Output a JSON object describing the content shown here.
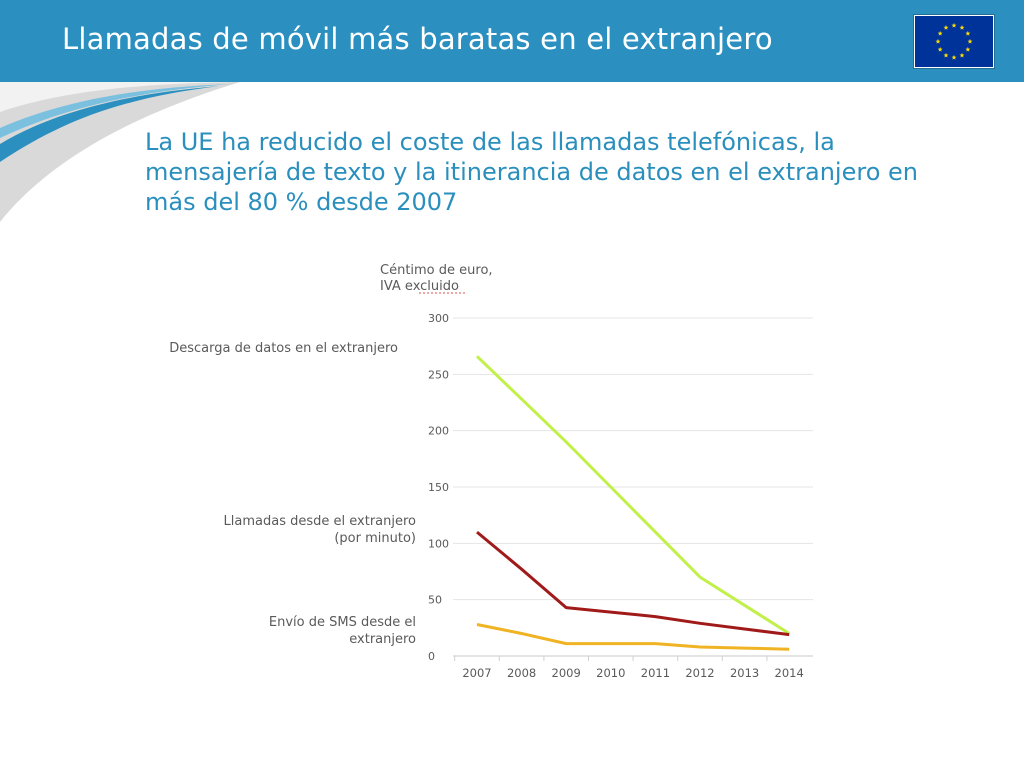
{
  "slide": {
    "title": "Llamadas de móvil más baratas en el extranjero",
    "subtitle": "La UE ha reducido el coste de las llamadas telefónicas, la mensajería de texto y la itinerancia de datos en el extranjero en más del 80 % desde 2007",
    "header_color": "#2b90c0",
    "flag_icon": "eu-flag-icon"
  },
  "chart_data": {
    "type": "line",
    "title": "",
    "ylabel": "Céntimo de euro, IVA excluido",
    "ylabel_lines": [
      "Céntimo de euro,",
      "IVA excluido"
    ],
    "xlabel": "",
    "x": [
      "2007",
      "2008",
      "2009",
      "2010",
      "2011",
      "2012",
      "2013",
      "2014"
    ],
    "ylim": [
      0,
      300
    ],
    "yticks": [
      "0",
      "50",
      "100",
      "150",
      "200",
      "250",
      "300"
    ],
    "grid": true,
    "series": [
      {
        "name": "Descarga de datos en el extranjero",
        "label_lines": [
          "Descarga de datos en el extranjero"
        ],
        "color": "#c2f04a",
        "values": [
          266,
          228,
          190,
          150,
          110,
          70,
          45,
          20
        ]
      },
      {
        "name": "Llamadas desde el extranjero (por minuto)",
        "label_lines": [
          "Llamadas desde el extranjero",
          "(por minuto)"
        ],
        "color": "#a11a1a",
        "values": [
          110,
          77,
          43,
          39,
          35,
          29,
          24,
          19
        ]
      },
      {
        "name": "Envío de SMS desde el extranjero",
        "label_lines": [
          "Envío de SMS desde el",
          "extranjero"
        ],
        "color": "#f0b323",
        "values": [
          28,
          20,
          11,
          11,
          11,
          8,
          7,
          6
        ]
      }
    ]
  }
}
